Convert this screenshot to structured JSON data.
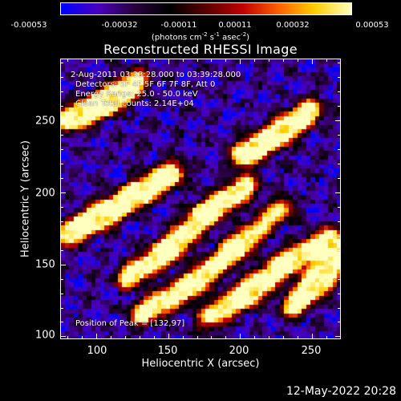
{
  "colorbar": {
    "ticks": [
      "-0.00053",
      "-0.00032",
      "-0.00011",
      "0.00011",
      "0.00032",
      "0.00053"
    ],
    "units": "(photons cm",
    "units_exp1": "-2",
    "units_mid": " s",
    "units_exp2": "-1",
    "units_mid2": " asec",
    "units_exp3": "-2",
    "units_end": ")",
    "colors": [
      "#0000ff",
      "#4a00c0",
      "#2a0040",
      "#000000",
      "#5a0000",
      "#c00000",
      "#ff6000",
      "#ffd000",
      "#ffffc0"
    ]
  },
  "title": "Reconstructed RHESSI Image",
  "info": {
    "line1": "2-Aug-2011 03:33:28.000 to 03:39:28.000",
    "line2": "Detectors: 3F 4F 5F 6F 7F 8F, Att 0",
    "line3": "Energy Range: 25.0 - 50.0 keV",
    "line4": "Clean     Total counts: 2.14E+04",
    "peak": "Position of Peak = [132,97]"
  },
  "chart_data": {
    "type": "heatmap",
    "title": "Reconstructed RHESSI Image",
    "xlabel": "Heliocentric X (arcsec)",
    "ylabel": "Heliocentric Y (arcsec)",
    "xlim": [
      75,
      270
    ],
    "ylim": [
      98,
      293
    ],
    "x_ticks": [
      "100",
      "150",
      "200",
      "250"
    ],
    "y_ticks": [
      "100",
      "150",
      "200",
      "250"
    ],
    "colorbar_range": [
      -0.00053,
      0.00053
    ],
    "colorbar_ticks": [
      -0.00053,
      -0.00032,
      -0.00011,
      0.00011,
      0.00032,
      0.00053
    ],
    "peak_position": [
      132,
      97
    ],
    "bright_ridges": [
      {
        "x": [
          78,
          105,
          130,
          155
        ],
        "y": [
          170,
          185,
          200,
          215
        ]
      },
      {
        "x": [
          120,
          150,
          175,
          205
        ],
        "y": [
          140,
          160,
          185,
          205
        ]
      },
      {
        "x": [
          130,
          165,
          195,
          230
        ],
        "y": [
          115,
          135,
          160,
          190
        ]
      },
      {
        "x": [
          175,
          205,
          230,
          265
        ],
        "y": [
          112,
          130,
          150,
          170
        ]
      },
      {
        "x": [
          80,
          105,
          130
        ],
        "y": [
          250,
          262,
          278
        ]
      },
      {
        "x": [
          200,
          225,
          250
        ],
        "y": [
          225,
          240,
          258
        ]
      },
      {
        "x": [
          235,
          255,
          270
        ],
        "y": [
          120,
          140,
          160
        ]
      }
    ]
  },
  "footer": "12-May-2022 20:28"
}
